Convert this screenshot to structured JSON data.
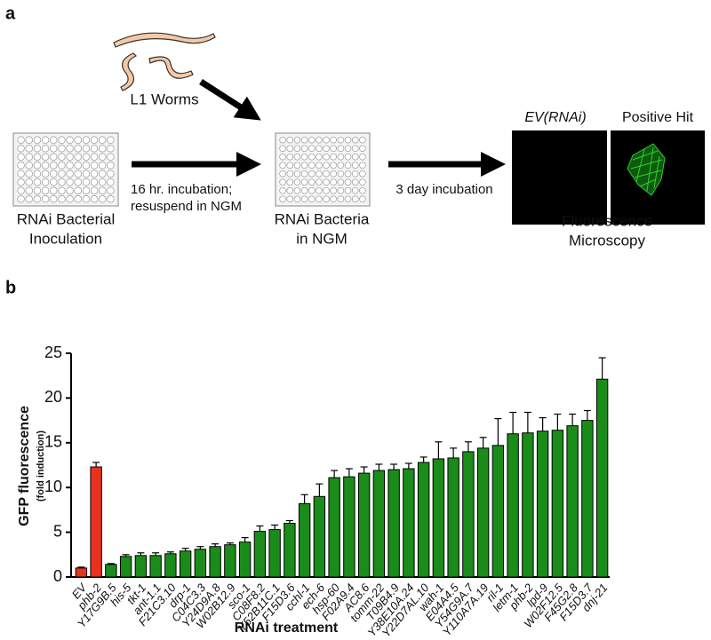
{
  "panel_a": {
    "label": "a",
    "worms_label": "L1 Worms",
    "step1": [
      "RNAi Bacterial",
      "Inoculation"
    ],
    "arrow1": [
      "16 hr. incubation;",
      "resuspend in NGM"
    ],
    "step2": [
      "RNAi Bacteria",
      "in NGM"
    ],
    "arrow2": "3 day incubation",
    "image_titles": [
      "EV(RNAi)",
      "Positive Hit"
    ],
    "step3": [
      "Fluorescence",
      "Microscopy"
    ]
  },
  "panel_b_label": "b",
  "chart_data": {
    "type": "bar",
    "ylabel": "GFP fluorescence",
    "ylabel_sub": "(fold induction)",
    "xlabel": "RNAi treatment",
    "categories": [
      "EV",
      "phb-2",
      "Y17G9B.5",
      "his-5",
      "tkt-1",
      "ant-1.1",
      "F21C3.10",
      "drp-1",
      "C04C3.3",
      "Y24D9A.8",
      "W02B12.9",
      "sco-1",
      "C08F8.2",
      "Y52B11C.1",
      "F15D3.6",
      "cchl-1",
      "ech-6",
      "hsp-60",
      "F02A9.4",
      "AC8.6",
      "tomm-22",
      "T09B4.9",
      "Y38E10A.24",
      "Y22D7AL.10",
      "wah-1",
      "E04A4.5",
      "Y54G9A.7",
      "Y110A7A.19",
      "ril-1",
      "letm-1",
      "phb-2",
      "lpd-9",
      "W02F12.5",
      "F45G2.8",
      "F15D3.7",
      "dnj-21"
    ],
    "values": [
      1.0,
      12.3,
      1.4,
      2.3,
      2.4,
      2.4,
      2.6,
      2.9,
      3.1,
      3.4,
      3.6,
      3.9,
      5.1,
      5.3,
      6.0,
      8.2,
      9.0,
      11.1,
      11.2,
      11.6,
      11.9,
      12.0,
      12.1,
      12.8,
      13.2,
      13.3,
      14.0,
      14.4,
      14.7,
      16.0,
      16.1,
      16.3,
      16.4,
      16.9,
      17.5,
      22.1
    ],
    "errors": [
      0.1,
      0.5,
      0.1,
      0.2,
      0.3,
      0.3,
      0.2,
      0.3,
      0.3,
      0.3,
      0.2,
      0.5,
      0.6,
      0.5,
      0.3,
      1.0,
      1.4,
      0.8,
      0.9,
      0.7,
      0.7,
      0.6,
      0.6,
      0.6,
      1.9,
      1.1,
      1.1,
      1.2,
      3.0,
      2.4,
      2.3,
      1.5,
      1.8,
      1.3,
      1.1,
      2.4
    ],
    "colors": [
      "#e8321e",
      "#e8321e",
      "#1a8c1a",
      "#1a8c1a",
      "#1a8c1a",
      "#1a8c1a",
      "#1a8c1a",
      "#1a8c1a",
      "#1a8c1a",
      "#1a8c1a",
      "#1a8c1a",
      "#1a8c1a",
      "#1a8c1a",
      "#1a8c1a",
      "#1a8c1a",
      "#1a8c1a",
      "#1a8c1a",
      "#1a8c1a",
      "#1a8c1a",
      "#1a8c1a",
      "#1a8c1a",
      "#1a8c1a",
      "#1a8c1a",
      "#1a8c1a",
      "#1a8c1a",
      "#1a8c1a",
      "#1a8c1a",
      "#1a8c1a",
      "#1a8c1a",
      "#1a8c1a",
      "#1a8c1a",
      "#1a8c1a",
      "#1a8c1a",
      "#1a8c1a",
      "#1a8c1a",
      "#1a8c1a"
    ],
    "ylim": [
      0,
      25
    ],
    "yticks": [
      0,
      5,
      10,
      15,
      20,
      25
    ],
    "grid": false
  }
}
